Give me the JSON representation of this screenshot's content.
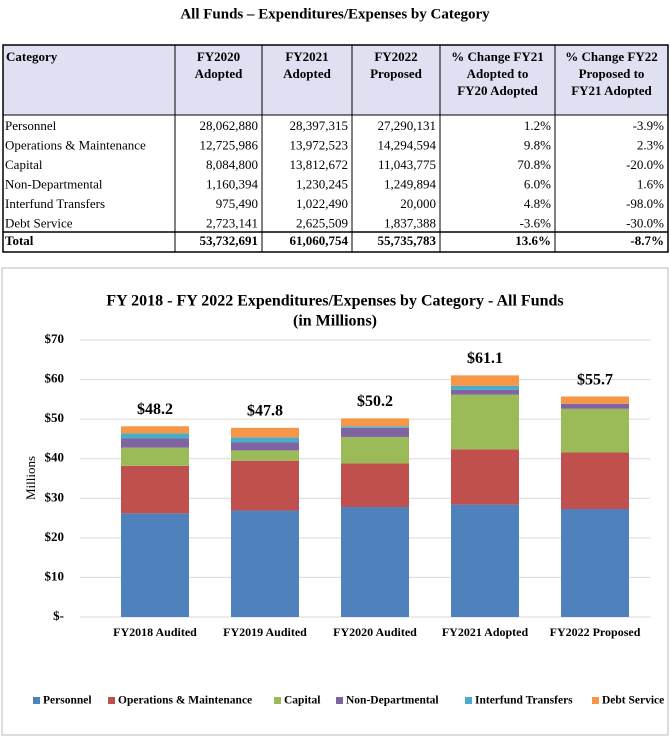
{
  "document": {
    "title": "All Funds – Expenditures/Expenses by Category",
    "table": {
      "headers": [
        [
          "Category"
        ],
        [
          "FY2020",
          "Adopted"
        ],
        [
          "FY2021",
          "Adopted"
        ],
        [
          "FY2022",
          "Proposed"
        ],
        [
          "% Change FY21",
          "Adopted to",
          "FY20 Adopted"
        ],
        [
          "% Change FY22",
          "Proposed to",
          "FY21 Adopted"
        ]
      ],
      "rows": [
        [
          "Personnel",
          "28,062,880",
          "28,397,315",
          "27,290,131",
          "1.2%",
          "-3.9%"
        ],
        [
          "Operations & Maintenance",
          "12,725,986",
          "13,972,523",
          "14,294,594",
          "9.8%",
          "2.3%"
        ],
        [
          "Capital",
          "8,084,800",
          "13,812,672",
          "11,043,775",
          "70.8%",
          "-20.0%"
        ],
        [
          "Non-Departmental",
          "1,160,394",
          "1,230,245",
          "1,249,894",
          "6.0%",
          "1.6%"
        ],
        [
          "Interfund Transfers",
          "975,490",
          "1,022,490",
          "20,000",
          "4.8%",
          "-98.0%"
        ],
        [
          "Debt Service",
          "2,723,141",
          "2,625,509",
          "1,837,388",
          "-3.6%",
          "-30.0%"
        ]
      ],
      "total": [
        "Total",
        "53,732,691",
        "61,060,754",
        "55,735,783",
        "13.6%",
        "-8.7%"
      ]
    }
  },
  "chart_data": {
    "type": "stacked_bar",
    "title": "FY 2018 - FY 2022 Expenditures/Expenses  by Category - All Funds",
    "subtitle": "(in Millions)",
    "y_label": "Millions",
    "categories": [
      "FY2018 Audited",
      "FY2019 Audited",
      "FY2020 Audited",
      "FY2021 Adopted",
      "FY2022 Proposed"
    ],
    "series": [
      {
        "name": "Personnel",
        "color": "#4f81bd",
        "values": [
          26.2,
          26.9,
          27.8,
          28.4,
          27.29
        ]
      },
      {
        "name": "Operations & Maintenance",
        "color": "#c0504d",
        "values": [
          12.0,
          12.6,
          11.0,
          13.97,
          14.29
        ]
      },
      {
        "name": "Capital",
        "color": "#9bbb59",
        "values": [
          4.6,
          2.6,
          6.7,
          13.81,
          11.04
        ]
      },
      {
        "name": "Non-Departmental",
        "color": "#8064a2",
        "values": [
          2.3,
          2.0,
          2.3,
          1.23,
          1.25
        ]
      },
      {
        "name": "Interfund Transfers",
        "color": "#4bacc6",
        "values": [
          1.3,
          1.3,
          0.4,
          1.02,
          0.02
        ]
      },
      {
        "name": "Debt Service",
        "color": "#f79646",
        "values": [
          1.8,
          2.4,
          2.0,
          2.63,
          1.84
        ]
      }
    ],
    "totals": [
      48.2,
      47.8,
      50.2,
      61.1,
      55.7
    ],
    "total_labels": [
      "$48.2",
      "$47.8",
      "$50.2",
      "$61.1",
      "$55.7"
    ],
    "ylim": [
      0,
      70
    ],
    "yticks": [
      {
        "value": 0,
        "label": "$-"
      },
      {
        "value": 10,
        "label": "$10"
      },
      {
        "value": 20,
        "label": "$20"
      },
      {
        "value": 30,
        "label": "$30"
      },
      {
        "value": 40,
        "label": "$40"
      },
      {
        "value": 50,
        "label": "$50"
      },
      {
        "value": 60,
        "label": "$60"
      },
      {
        "value": 70,
        "label": "$70"
      }
    ],
    "grid": true,
    "legend": "bottom"
  }
}
